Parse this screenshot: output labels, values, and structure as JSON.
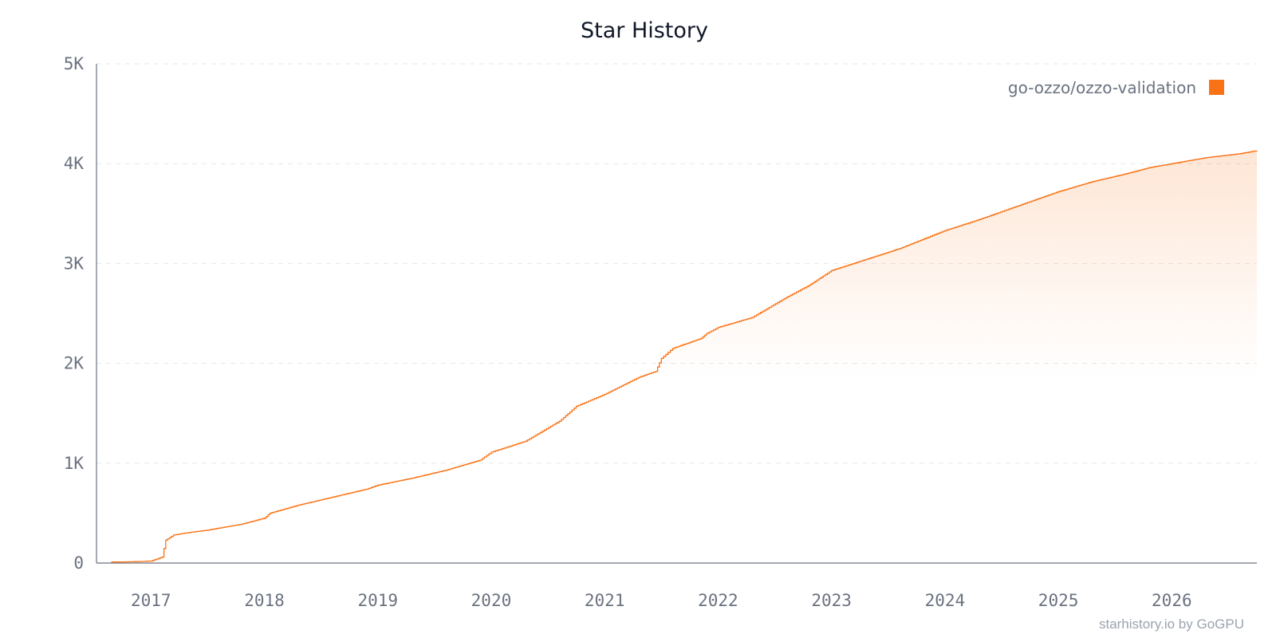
{
  "chart_data": {
    "type": "line",
    "title": "Star History",
    "xlabel": "",
    "ylabel": "",
    "x_ticks": [
      "2017",
      "2018",
      "2019",
      "2020",
      "2021",
      "2022",
      "2023",
      "2024",
      "2025",
      "2026"
    ],
    "y_ticks": [
      "0",
      "1K",
      "2K",
      "3K",
      "4K",
      "5K"
    ],
    "xlim": [
      2016.52,
      2026.75
    ],
    "ylim": [
      0,
      5000
    ],
    "grid": true,
    "legend_position": "top-right",
    "series": [
      {
        "name": "go-ozzo/ozzo-validation",
        "color": "#f97316",
        "x": [
          2016.65,
          2016.8,
          2016.9,
          2017.0,
          2017.05,
          2017.1,
          2017.13,
          2017.2,
          2017.3,
          2017.5,
          2017.8,
          2018.0,
          2018.05,
          2018.3,
          2018.6,
          2018.9,
          2019.0,
          2019.3,
          2019.6,
          2019.9,
          2020.0,
          2020.3,
          2020.6,
          2020.75,
          2021.0,
          2021.3,
          2021.45,
          2021.5,
          2021.6,
          2021.85,
          2021.9,
          2022.0,
          2022.3,
          2022.6,
          2022.8,
          2023.0,
          2023.3,
          2023.6,
          2024.0,
          2024.3,
          2024.6,
          2025.0,
          2025.3,
          2025.6,
          2025.8,
          2026.0,
          2026.3,
          2026.6,
          2026.75
        ],
        "y": [
          10,
          12,
          15,
          20,
          40,
          60,
          230,
          280,
          300,
          330,
          390,
          450,
          500,
          580,
          660,
          740,
          780,
          850,
          930,
          1030,
          1110,
          1220,
          1420,
          1570,
          1690,
          1860,
          1920,
          2050,
          2150,
          2250,
          2300,
          2360,
          2460,
          2660,
          2780,
          2930,
          3040,
          3150,
          3330,
          3440,
          3560,
          3720,
          3820,
          3900,
          3960,
          4000,
          4060,
          4100,
          4130
        ]
      }
    ]
  },
  "footer": "starhistory.io by GoGPU"
}
